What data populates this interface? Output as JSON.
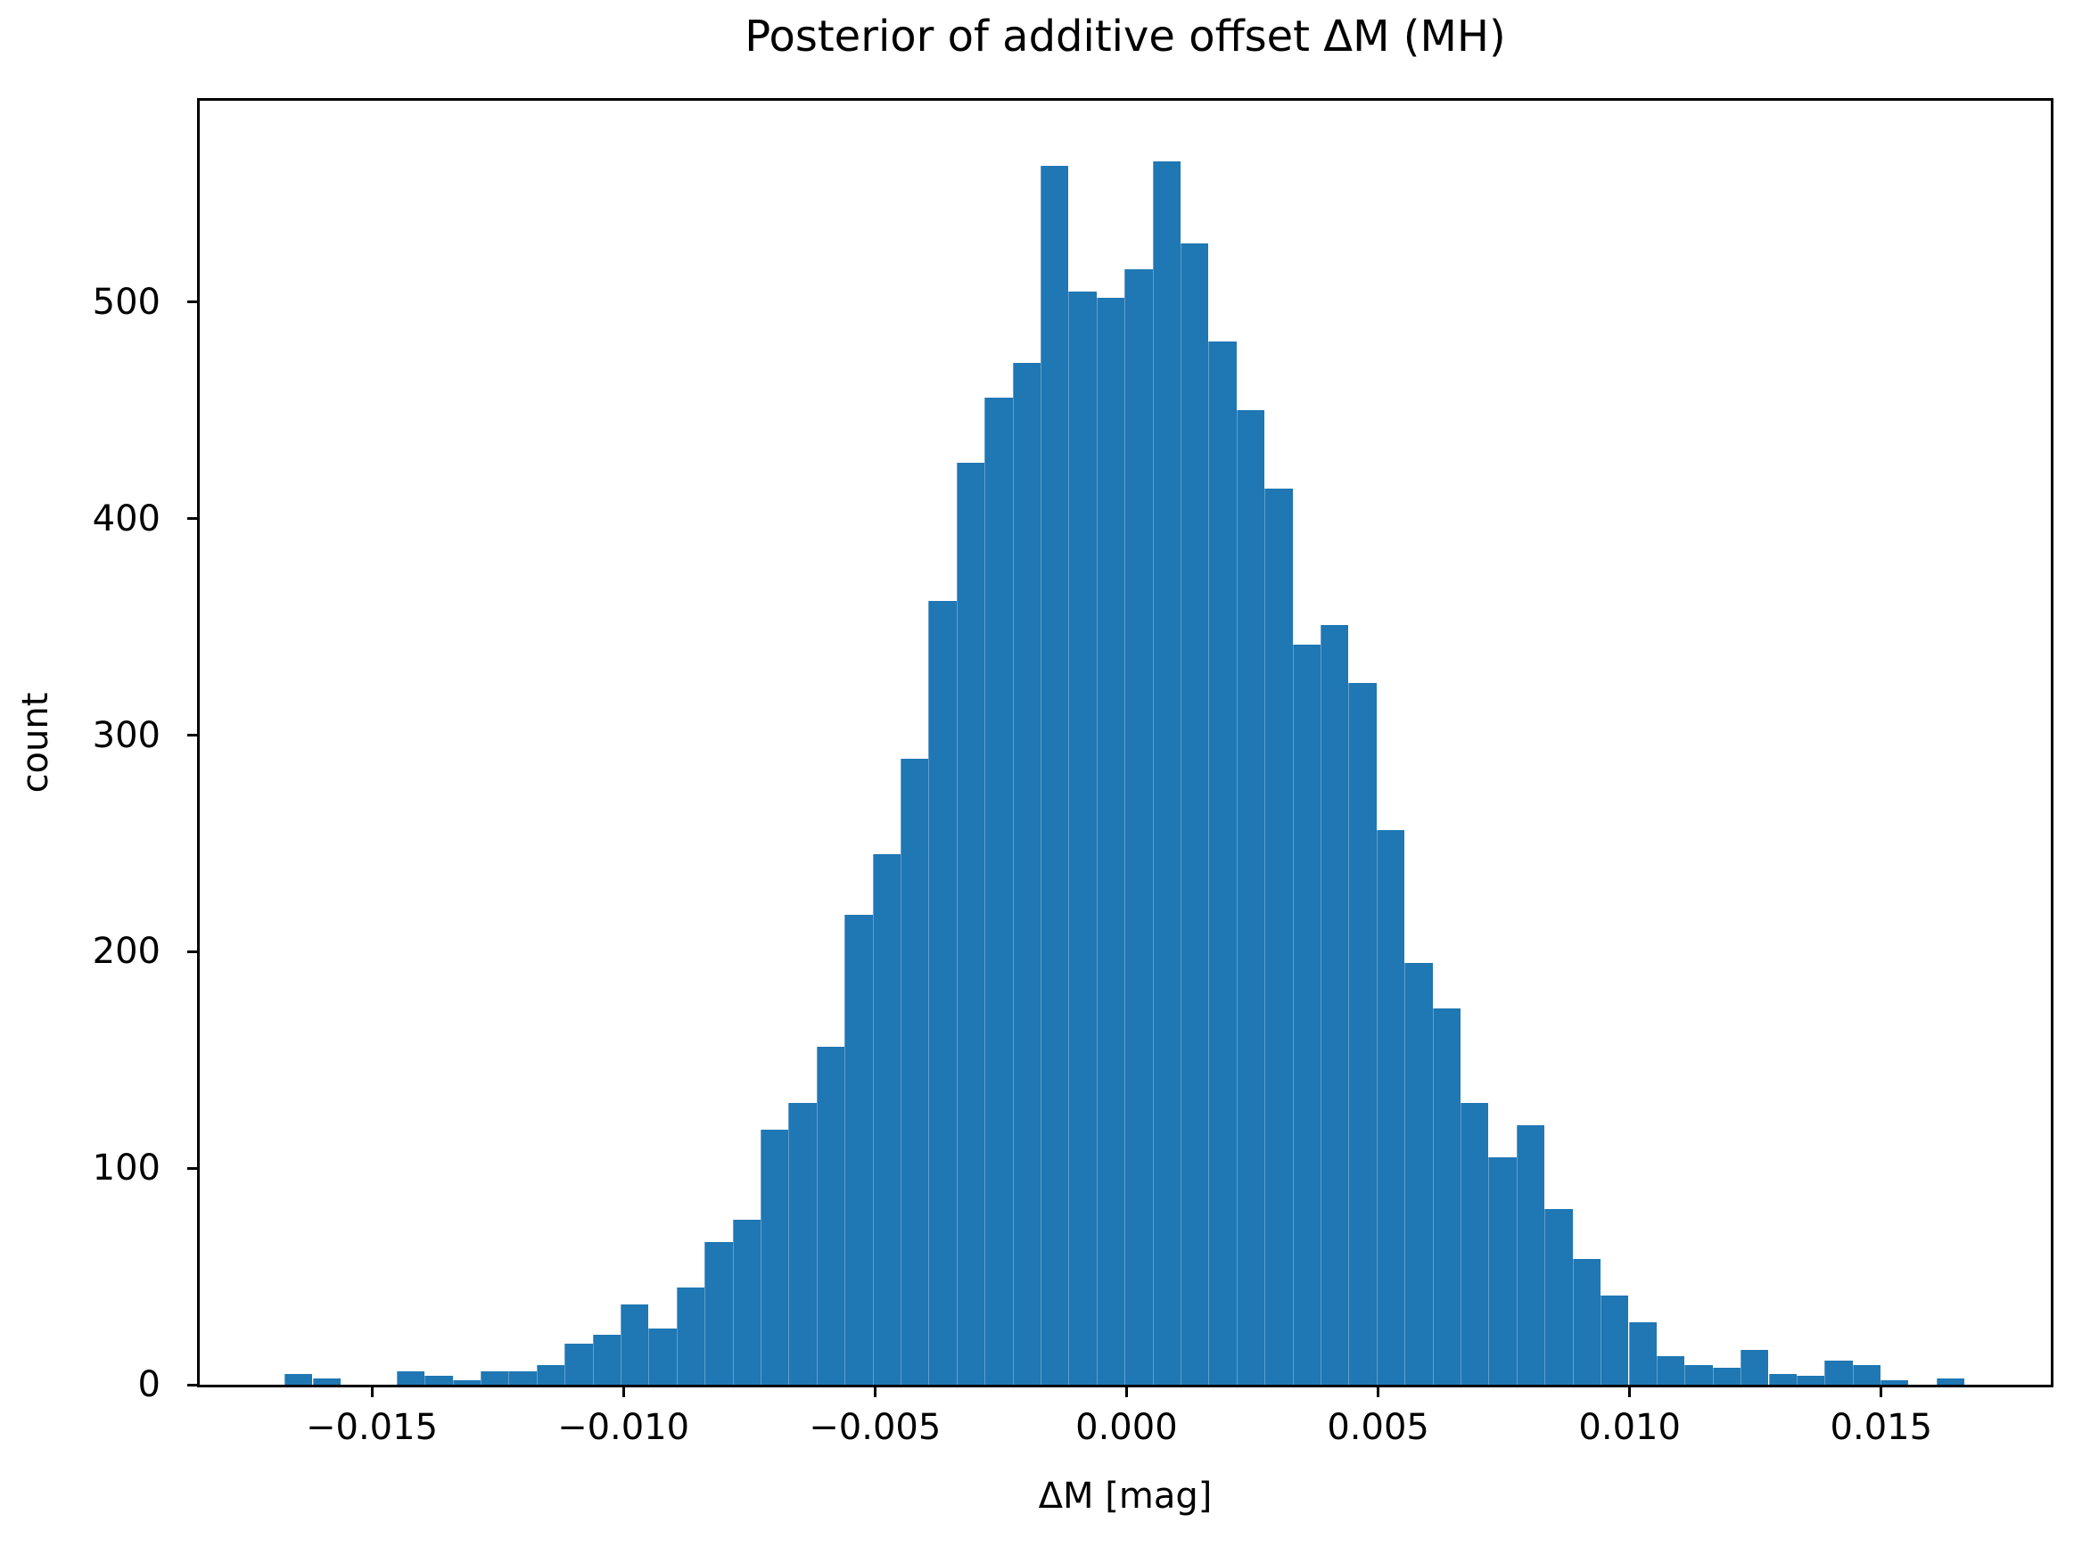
{
  "chart_data": {
    "type": "bar",
    "subtype": "histogram",
    "title": "Posterior of additive offset ΔM (MH)",
    "xlabel": "ΔM [mag]",
    "ylabel": "count",
    "bar_color": "#1f77b4",
    "axis_color": "#000000",
    "background_color": "#ffffff",
    "grid": false,
    "legend": false,
    "bin_start": -0.016734,
    "bin_width": 0.0005565,
    "n_bins": 60,
    "counts": [
      5,
      3,
      0,
      0,
      6,
      4,
      2,
      6,
      6,
      9,
      19,
      23,
      37,
      26,
      45,
      66,
      76,
      118,
      130,
      156,
      217,
      245,
      289,
      362,
      426,
      456,
      472,
      563,
      505,
      502,
      515,
      565,
      527,
      482,
      450,
      414,
      342,
      351,
      324,
      256,
      195,
      174,
      130,
      105,
      120,
      81,
      58,
      41,
      29,
      13,
      9,
      8,
      16,
      5,
      4,
      11,
      9,
      2,
      0,
      3
    ],
    "xlim": [
      -0.01842,
      0.01837
    ],
    "ylim": [
      0,
      593
    ],
    "xticks": [
      -0.015,
      -0.01,
      -0.005,
      0.0,
      0.005,
      0.01,
      0.015
    ],
    "xtick_labels": [
      "−0.015",
      "−0.010",
      "−0.005",
      "0.000",
      "0.005",
      "0.010",
      "0.015"
    ],
    "yticks": [
      0,
      100,
      200,
      300,
      400,
      500
    ],
    "ytick_labels": [
      "0",
      "100",
      "200",
      "300",
      "400",
      "500"
    ]
  }
}
